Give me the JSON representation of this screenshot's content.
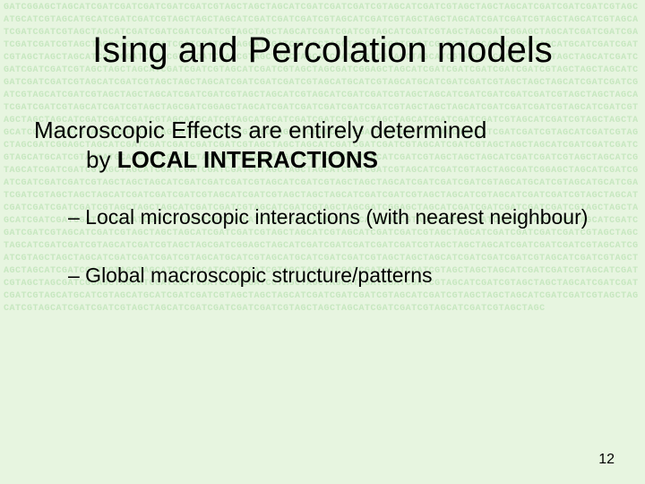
{
  "background_color": "#e7f5e0",
  "dna_color": "#c7e7c0",
  "title": "Ising and Percolation models",
  "line1_a": "Macroscopic Effects are entirely determined",
  "line1_b": "by ",
  "line1_bold": "LOCAL INTERACTIONS",
  "bullet1": "–  Local microscopic interactions (with nearest neighbour)",
  "bullet2": "– Global macroscopic structure/patterns",
  "page_number": "12",
  "dna_text": "GATCGGAGCTAGCATCGATCGATCGATCGATCGATCGTAGCTAGCTAGCATCGATCGATCGATCGTAGCATCGATCGTAGCTAGCTAGCATCGATCGATCGATCGTAGCATGCATCGTAGCATGCATCGATCGATCGTAGCTAGCTAGCATCGATCGATCGATCGTAGCATCGATCGTAGCTAGCTAGCATCGATCGATCGTAGCTAGCATCGTAGCATCGATCGATCGTAGCTAGCATCGATCGATCGATCGATCGTAGCTAGCTAGCATCGATCGATCGTAGCATCGATCGTAGCTAGCGATCGGAGCTAGCATCGATCGATCGATCGATCGATCGTAGCTAGCTAGCATCGATCGATCGATCGTAGCATCGATCGTAGCTAGCTAGCATCGATCGATCGATCGTAGCATGCATCGTAGCATGCATCGATCGATCGTAGCTAGCTAGCATCGATCGATCGATCGTAGCATCGATCGTAGCTAGCTAGCATCGATCGATCGTAGCTAGCATCGTAGCATCGATCGATCGTAGCTAGCATCGATCGATCGATCGATCGTAGCTAGCTAGCATCGATCGATCGTAGCATCGATCGTAGCTAGCGATCGGAGCTAGCATCGATCGATCGATCGATCGATCGTAGCTAGCTAGCATCGATCGATCGATCGTAGCATCGATCGTAGCTAGCTAGCATCGATCGATCGATCGTAGCATGCATCGTAGCATGCATCGATCGATCGTAGCTAGCTAGCATCGATCGATCGATCGTAGCATCGATCGTAGCTAGCTAGCATCGATCGATCGTAGCTAGCATCGTAGCATCGATCGATCGTAGCTAGCATCGATCGATCGATCGATCGTAGCTAGCTAGCATCGATCGATCGTAGCATCGATCGTAGCTAGCGATCGGAGCTAGCATCGATCGATCGATCGATCGATCGTAGCTAGCTAGCATCGATCGATCGATCGTAGCATCGATCGTAGCTAGCTAGCATCGATCGATCGATCGTAGCATGCATCGTAGCATGCATCGATCGATCGTAGCTAGCTAGCATCGATCGATCGATCGTAGCATCGATCGTAGCTAGCTAGCATCGATCGATCGTAGCTAGCATCGTAGCATCGATCGATCGTAGCTAGCATCGATCGATCGATCGATCGTAGCTAGCTAGCATCGATCGATCGTAGCATCGATCGTAGCTAGCGATCGGAGCTAGCATCGATCGATCGATCGATCGATCGTAGCTAGCTAGCATCGATCGATCGATCGTAGCATCGATCGTAGCTAGCTAGCATCGATCGATCGATCGTAGCATGCATCGTAGCATGCATCGATCGATCGTAGCTAGCTAGCATCGATCGATCGATCGTAGCATCGATCGTAGCTAGCTAGCATCGATCGATCGTAGCTAGCATCGTAGCATCGATCGATCGTAGCTAGCATCGATCGATCGATCGATCGTAGCTAGCTAGCATCGATCGATCGTAGCATCGATCGTAGCTAGCGATCGGAGCTAGCATCGATCGATCGATCGATCGATCGTAGCTAGCTAGCATCGATCGATCGATCGTAGCATCGATCGTAGCTAGCTAGCATCGATCGATCGATCGTAGCATGCATCGTAGCATGCATCGATCGATCGTAGCTAGCTAGCATCGATCGATCGATCGTAGCATCGATCGTAGCTAGCTAGCATCGATCGATCGTAGCTAGCATCGTAGCATCGATCGATCGTAGCTAGCATCGATCGATCGATCGATCGTAGCTAGCTAGCATCGATCGATCGTAGCATCGATCGTAGCTAGCGATCGGAGCTAGCATCGATCGATCGATCGATCGATCGTAGCTAGCTAGCATCGATCGATCGATCGTAGCATCGATCGTAGCTAGCTAGCATCGATCGATCGATCGTAGCATGCATCGTAGCATGCATCGATCGATCGTAGCTAGCTAGCATCGATCGATCGATCGTAGCATCGATCGTAGCTAGCTAGCATCGATCGATCGTAGCTAGCATCGTAGCATCGATCGATCGTAGCTAGCATCGATCGATCGATCGATCGTAGCTAGCTAGCATCGATCGATCGTAGCATCGATCGTAGCTAGCGATCGGAGCTAGCATCGATCGATCGATCGATCGATCGTAGCTAGCTAGCATCGATCGATCGATCGTAGCATCGATCGTAGCTAGCTAGCATCGATCGATCGATCGTAGCATGCATCGTAGCATGCATCGATCGATCGTAGCTAGCTAGCATCGATCGATCGATCGTAGCATCGATCGTAGCTAGCTAGCATCGATCGATCGTAGCTAGCATCGTAGCATCGATCGATCGTAGCTAGCATCGATCGATCGATCGATCGTAGCTAGCTAGCATCGATCGATCGTAGCATCGATCGTAGCTAGCGATCGGAGCTAGCATCGATCGATCGATCGATCGATCGTAGCTAGCTAGCATCGATCGATCGATCGTAGCATCGATCGTAGCTAGCTAGCATCGATCGATCGATCGTAGCATGCATCGTAGCATGCATCGATCGATCGTAGCTAGCTAGCATCGATCGATCGATCGTAGCATCGATCGTAGCTAGCTAGCATCGATCGATCGTAGCTAGCATCGTAGCATCGATCGATCGTAGCTAGCATCGATCGATCGATCGATCGTAGCTAGCTAGCATCGATCGATCGTAGCATCGATCGTAGCTAGC"
}
